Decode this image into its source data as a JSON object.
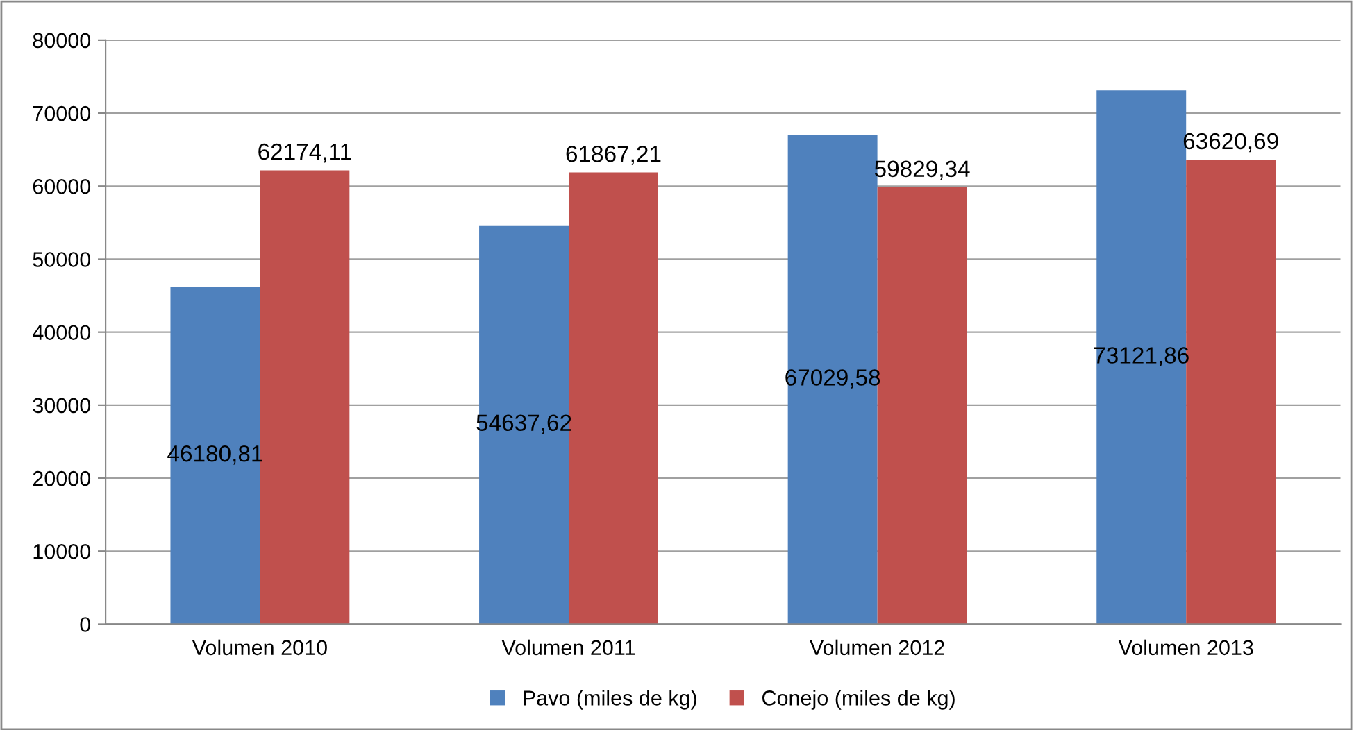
{
  "chart_data": {
    "type": "bar",
    "categories": [
      "Volumen 2010",
      "Volumen 2011",
      "Volumen 2012",
      "Volumen 2013"
    ],
    "series": [
      {
        "name": "Pavo (miles de kg)",
        "color": "#4f81bd",
        "values": [
          46180.81,
          54637.62,
          67029.58,
          73121.86
        ],
        "value_labels": [
          "46180,81",
          "54637,62",
          "67029,58",
          "73121,86"
        ]
      },
      {
        "name": "Conejo (miles de kg)",
        "color": "#c0504d",
        "values": [
          62174.11,
          61867.21,
          59829.34,
          63620.69
        ],
        "value_labels": [
          "62174,11",
          "61867,21",
          "59829,34",
          "63620,69"
        ]
      }
    ],
    "ylim": [
      0,
      80000
    ],
    "yticks": [
      0,
      10000,
      20000,
      30000,
      40000,
      50000,
      60000,
      70000,
      80000
    ],
    "grid": "y",
    "legend": "bottom"
  }
}
